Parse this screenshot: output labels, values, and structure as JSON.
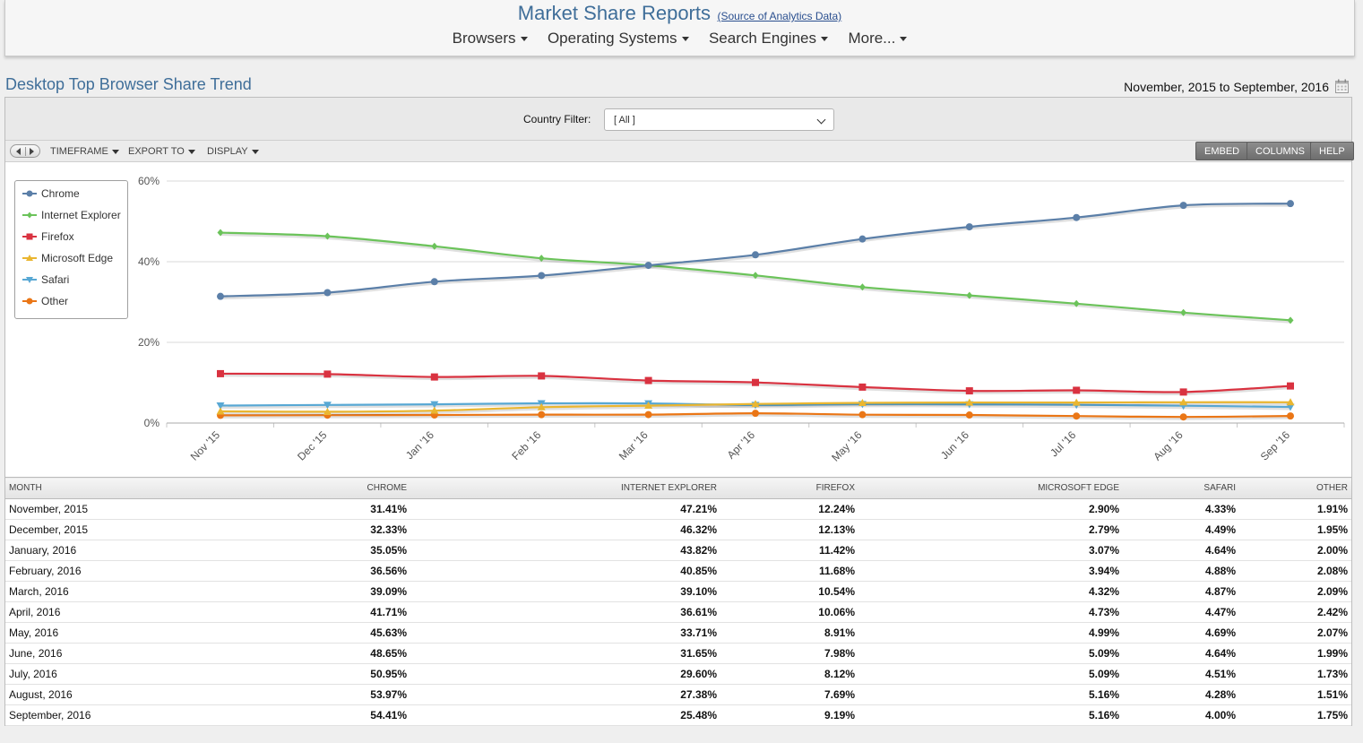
{
  "header": {
    "title": "Market Share Reports",
    "source_link": "(Source of Analytics Data)",
    "nav": [
      "Browsers",
      "Operating Systems",
      "Search Engines",
      "More..."
    ]
  },
  "page": {
    "title": "Desktop Top Browser Share Trend",
    "date_range": "November, 2015 to September, 2016"
  },
  "filter": {
    "label": "Country Filter:",
    "value": "[ All ]"
  },
  "toolbar": {
    "menus": [
      "TIMEFRAME",
      "EXPORT TO",
      "DISPLAY"
    ],
    "buttons": [
      "EMBED",
      "COLUMNS",
      "HELP"
    ]
  },
  "chart_data": {
    "type": "line",
    "categories": [
      "Nov '15",
      "Dec '15",
      "Jan '16",
      "Feb '16",
      "Mar '16",
      "Apr '16",
      "May '16",
      "Jun '16",
      "Jul '16",
      "Aug '16",
      "Sep '16"
    ],
    "ylim": [
      0,
      60
    ],
    "yticks": [
      "0%",
      "20%",
      "40%",
      "60%"
    ],
    "legend_position": "top-left",
    "grid": true,
    "series": [
      {
        "name": "Chrome",
        "color": "#5b7fa8",
        "marker": "circle",
        "values": [
          31.41,
          32.33,
          35.05,
          36.56,
          39.09,
          41.71,
          45.63,
          48.65,
          50.95,
          53.97,
          54.41
        ]
      },
      {
        "name": "Internet Explorer",
        "color": "#6bc35a",
        "marker": "diamond",
        "values": [
          47.21,
          46.32,
          43.82,
          40.85,
          39.1,
          36.61,
          33.71,
          31.65,
          29.6,
          27.38,
          25.48
        ]
      },
      {
        "name": "Firefox",
        "color": "#d93240",
        "marker": "square",
        "values": [
          12.24,
          12.13,
          11.42,
          11.68,
          10.54,
          10.06,
          8.91,
          7.98,
          8.12,
          7.69,
          9.19
        ]
      },
      {
        "name": "Microsoft Edge",
        "color": "#eab630",
        "marker": "triangle-up",
        "values": [
          2.9,
          2.79,
          3.07,
          3.94,
          4.32,
          4.73,
          4.99,
          5.09,
          5.09,
          5.16,
          5.16
        ]
      },
      {
        "name": "Safari",
        "color": "#58a8d4",
        "marker": "triangle-down",
        "values": [
          4.33,
          4.49,
          4.64,
          4.88,
          4.87,
          4.47,
          4.69,
          4.64,
          4.51,
          4.28,
          4.0
        ]
      },
      {
        "name": "Other",
        "color": "#ea7616",
        "marker": "circle",
        "values": [
          1.91,
          1.95,
          2.0,
          2.08,
          2.09,
          2.42,
          2.07,
          1.99,
          1.73,
          1.51,
          1.75
        ]
      }
    ]
  },
  "table": {
    "columns": [
      "MONTH",
      "CHROME",
      "INTERNET EXPLORER",
      "FIREFOX",
      "MICROSOFT EDGE",
      "SAFARI",
      "OTHER"
    ],
    "rows": [
      [
        "November, 2015",
        "31.41%",
        "47.21%",
        "12.24%",
        "2.90%",
        "4.33%",
        "1.91%"
      ],
      [
        "December, 2015",
        "32.33%",
        "46.32%",
        "12.13%",
        "2.79%",
        "4.49%",
        "1.95%"
      ],
      [
        "January, 2016",
        "35.05%",
        "43.82%",
        "11.42%",
        "3.07%",
        "4.64%",
        "2.00%"
      ],
      [
        "February, 2016",
        "36.56%",
        "40.85%",
        "11.68%",
        "3.94%",
        "4.88%",
        "2.08%"
      ],
      [
        "March, 2016",
        "39.09%",
        "39.10%",
        "10.54%",
        "4.32%",
        "4.87%",
        "2.09%"
      ],
      [
        "April, 2016",
        "41.71%",
        "36.61%",
        "10.06%",
        "4.73%",
        "4.47%",
        "2.42%"
      ],
      [
        "May, 2016",
        "45.63%",
        "33.71%",
        "8.91%",
        "4.99%",
        "4.69%",
        "2.07%"
      ],
      [
        "June, 2016",
        "48.65%",
        "31.65%",
        "7.98%",
        "5.09%",
        "4.64%",
        "1.99%"
      ],
      [
        "July, 2016",
        "50.95%",
        "29.60%",
        "8.12%",
        "5.09%",
        "4.51%",
        "1.73%"
      ],
      [
        "August, 2016",
        "53.97%",
        "27.38%",
        "7.69%",
        "5.16%",
        "4.28%",
        "1.51%"
      ],
      [
        "September, 2016",
        "54.41%",
        "25.48%",
        "9.19%",
        "5.16%",
        "4.00%",
        "1.75%"
      ]
    ]
  }
}
